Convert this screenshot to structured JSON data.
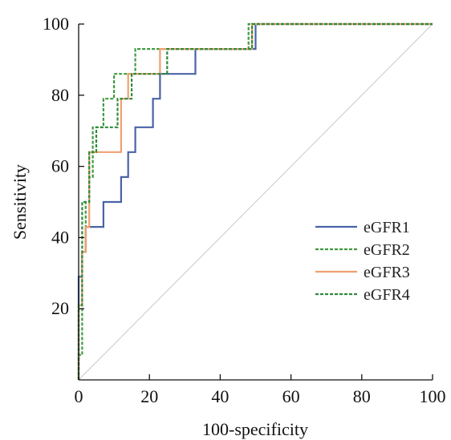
{
  "chart_data": {
    "type": "line",
    "xlabel": "100-specificity",
    "ylabel": "Sensitivity",
    "xlim": [
      0,
      100
    ],
    "ylim": [
      0,
      100
    ],
    "x_ticks": [
      0,
      20,
      40,
      60,
      80,
      100
    ],
    "y_ticks": [
      20,
      40,
      60,
      80,
      100
    ],
    "grid": false,
    "legend_position": "center-right",
    "reference_line": {
      "x": [
        0,
        100
      ],
      "y": [
        0,
        100
      ],
      "color": "#c8c8c8"
    },
    "series": [
      {
        "name": "eGFR1",
        "color": "#4a63a8",
        "dash": "solid",
        "x": [
          0,
          0,
          1,
          1,
          2,
          2,
          3,
          3,
          7,
          7,
          12,
          12,
          14,
          14,
          16,
          16,
          21,
          21,
          23,
          23,
          33,
          33,
          50,
          50,
          100
        ],
        "y": [
          0,
          29,
          29,
          36,
          36,
          43,
          43,
          43,
          43,
          50,
          50,
          57,
          57,
          64,
          64,
          71,
          71,
          79,
          79,
          86,
          86,
          93,
          93,
          100,
          100
        ]
      },
      {
        "name": "eGFR2",
        "color": "#3f9a3f",
        "dash": "dashed",
        "x": [
          0,
          0,
          1,
          1,
          2,
          2,
          3,
          3,
          4,
          4,
          7,
          7,
          10,
          10,
          16,
          16,
          24,
          24,
          48,
          48,
          100
        ],
        "y": [
          0,
          7,
          7,
          36,
          36,
          50,
          50,
          57,
          57,
          71,
          71,
          79,
          79,
          86,
          86,
          93,
          93,
          93,
          93,
          100,
          100
        ]
      },
      {
        "name": "eGFR3",
        "color": "#f0a070",
        "dash": "solid",
        "x": [
          0,
          0,
          1,
          1,
          2,
          2,
          3,
          3,
          12,
          12,
          14,
          14,
          23,
          23,
          49,
          49,
          100
        ],
        "y": [
          0,
          21,
          21,
          36,
          36,
          43,
          43,
          64,
          64,
          79,
          79,
          86,
          86,
          93,
          93,
          100,
          100
        ]
      },
      {
        "name": "eGFR4",
        "color": "#2f8a3a",
        "dash": "dashed",
        "x": [
          0,
          0,
          1,
          1,
          3,
          3,
          5,
          5,
          11,
          11,
          15,
          15,
          25,
          25,
          49,
          49,
          100
        ],
        "y": [
          0,
          21,
          21,
          50,
          50,
          64,
          64,
          71,
          71,
          79,
          79,
          86,
          86,
          93,
          93,
          100,
          100
        ]
      }
    ]
  }
}
